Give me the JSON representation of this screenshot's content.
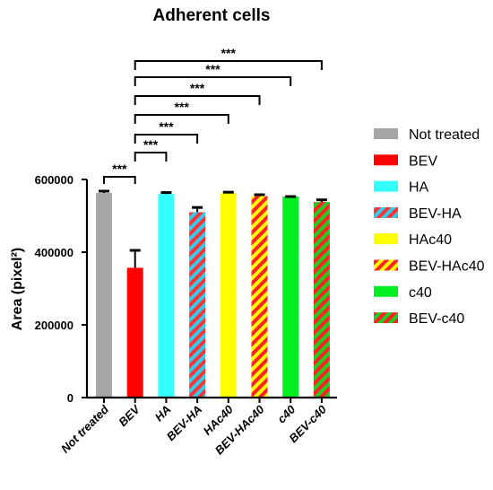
{
  "chart_data": {
    "type": "bar",
    "title": "Adherent cells",
    "ylabel": "Area (pixel²)",
    "xlabel": "",
    "ylim": [
      0,
      600000
    ],
    "yticks": [
      0,
      200000,
      400000,
      600000
    ],
    "ytick_labels": [
      "0",
      "200000",
      "400000",
      "600000"
    ],
    "categories": [
      "Not treated",
      "BEV",
      "HA",
      "BEV-HA",
      "HAc40",
      "BEV-HAc40",
      "c40",
      "BEV-c40"
    ],
    "values": [
      563000,
      357000,
      560000,
      510000,
      562000,
      554000,
      553000,
      538000
    ],
    "errors": [
      5000,
      48000,
      4000,
      13000,
      3000,
      4000,
      0,
      6000
    ],
    "fills": [
      {
        "color": "#a6a6a6",
        "stripe": null
      },
      {
        "color": "#ff0000",
        "stripe": null
      },
      {
        "color": "#33ffff",
        "stripe": null
      },
      {
        "color": "#33ccee",
        "stripe": "#ff3333"
      },
      {
        "color": "#ffff00",
        "stripe": null
      },
      {
        "color": "#ffff00",
        "stripe": "#ff2222"
      },
      {
        "color": "#00ee22",
        "stripe": null
      },
      {
        "color": "#22cc22",
        "stripe": "#ff2222"
      }
    ],
    "legend": {
      "placement": "right",
      "entries": [
        "Not treated",
        "BEV",
        "HA",
        "BEV-HA",
        "HAc40",
        "BEV-HAc40",
        "c40",
        "BEV-c40"
      ]
    },
    "significance": [
      {
        "from": "Not treated",
        "to": "BEV",
        "label": "***"
      },
      {
        "from": "BEV",
        "to": "HA",
        "label": "***"
      },
      {
        "from": "BEV",
        "to": "BEV-HA",
        "label": "***"
      },
      {
        "from": "BEV",
        "to": "HAc40",
        "label": "***"
      },
      {
        "from": "BEV",
        "to": "BEV-HAc40",
        "label": "***"
      },
      {
        "from": "BEV",
        "to": "c40",
        "label": "***"
      },
      {
        "from": "BEV",
        "to": "BEV-c40",
        "label": "***"
      }
    ],
    "grid": false
  }
}
